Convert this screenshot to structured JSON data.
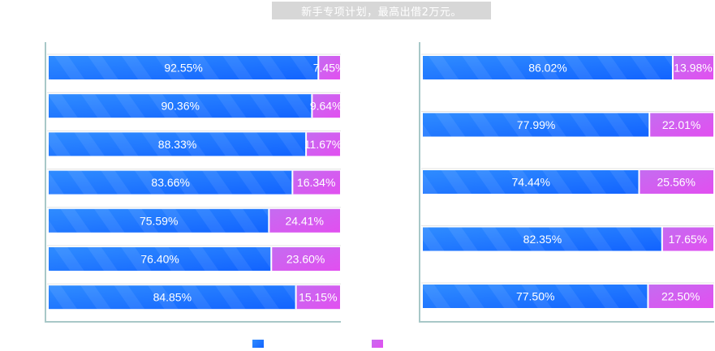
{
  "banner": {
    "text": "新手专项计划，最高出借2万元。"
  },
  "colors": {
    "blue_start": "#2f8cff",
    "blue_end": "#1263ff",
    "purple_start": "#c46cf0",
    "purple_end": "#e24ff0",
    "axis": "#a8c8c8",
    "divider": "#ffffff"
  },
  "legend": {
    "series_a": "",
    "series_b": ""
  },
  "chart_data": [
    {
      "type": "bar",
      "orientation": "horizontal",
      "stacked": "percent",
      "xlim": [
        0,
        100
      ],
      "grid": false,
      "series": [
        {
          "values": [
            92.55,
            90.36,
            88.33,
            83.66,
            75.59,
            76.4,
            84.85
          ],
          "labels": [
            "92.55%",
            "90.36%",
            "88.33%",
            "83.66%",
            "75.59%",
            "76.40%",
            "84.85%"
          ]
        },
        {
          "values": [
            7.45,
            9.64,
            11.67,
            16.34,
            24.41,
            23.6,
            15.15
          ],
          "labels": [
            "7.45%",
            "9.64%",
            "11.67%",
            "16.34%",
            "24.41%",
            "23.60%",
            "15.15%"
          ]
        }
      ]
    },
    {
      "type": "bar",
      "orientation": "horizontal",
      "stacked": "percent",
      "xlim": [
        0,
        100
      ],
      "grid": false,
      "series": [
        {
          "values": [
            86.02,
            77.99,
            74.44,
            82.35,
            77.5
          ],
          "labels": [
            "86.02%",
            "77.99%",
            "74.44%",
            "82.35%",
            "77.50%"
          ]
        },
        {
          "values": [
            13.98,
            22.01,
            25.56,
            17.65,
            22.5
          ],
          "labels": [
            "13.98%",
            "22.01%",
            "25.56%",
            "17.65%",
            "22.50%"
          ]
        }
      ]
    }
  ]
}
